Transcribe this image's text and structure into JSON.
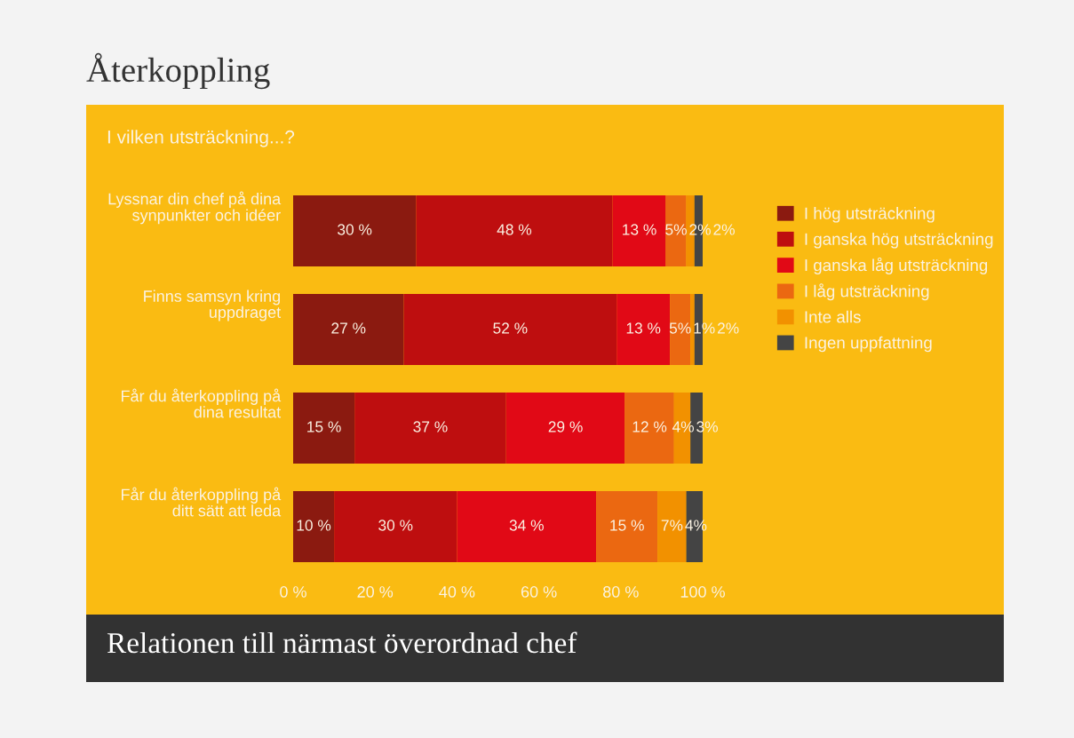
{
  "chart_data": {
    "type": "bar",
    "orientation": "horizontal",
    "stacked": true,
    "title": "Återkoppling",
    "subtitle": "I vilken utsträckning...?",
    "annotations": [
      "Relationen till närmast överordnad chef"
    ],
    "categories": [
      "Lyssnar din chef på dina\nsynpunkter och idéer",
      "Finns samsyn kring\nuppdraget",
      "Får du återkoppling på\ndina resultat",
      "Får du återkoppling på\nditt sätt att leda"
    ],
    "series": [
      {
        "name": "I hög utsträckning",
        "color": "#8b1a10",
        "values": [
          30,
          27,
          15,
          10
        ],
        "value_labels": [
          "30 %",
          "27 %",
          "15 %",
          "10 %"
        ]
      },
      {
        "name": "I ganska hög utsträckning",
        "color": "#be0e0f",
        "values": [
          48,
          52,
          37,
          30
        ],
        "value_labels": [
          "48 %",
          "52 %",
          "37 %",
          "30 %"
        ]
      },
      {
        "name": "I ganska låg utsträckning",
        "color": "#e10916",
        "values": [
          13,
          13,
          29,
          34
        ],
        "value_labels": [
          "13 %",
          "13 %",
          "29 %",
          "34 %"
        ]
      },
      {
        "name": "I låg utsträckning",
        "color": "#eb6811",
        "values": [
          5,
          5,
          12,
          15
        ],
        "value_labels": [
          "5%",
          "5%",
          "12 %",
          "15 %"
        ]
      },
      {
        "name": "Inte alls",
        "color": "#f29100",
        "values": [
          2,
          1,
          4,
          7
        ],
        "value_labels": [
          "2%",
          "1%",
          "4%",
          "7%"
        ]
      },
      {
        "name": "Ingen uppfattning",
        "color": "#444444",
        "values": [
          2,
          2,
          3,
          4
        ],
        "value_labels": [
          "2%",
          "2%",
          "3%",
          "4%"
        ]
      }
    ],
    "xlim": [
      0,
      100
    ],
    "xticks": [
      {
        "value": 0,
        "label": "0 %"
      },
      {
        "value": 20,
        "label": "20 %"
      },
      {
        "value": 40,
        "label": "40 %"
      },
      {
        "value": 60,
        "label": "60 %"
      },
      {
        "value": 80,
        "label": "80 %"
      },
      {
        "value": 100,
        "label": "100 %"
      }
    ],
    "legend": "right",
    "grid": false
  }
}
